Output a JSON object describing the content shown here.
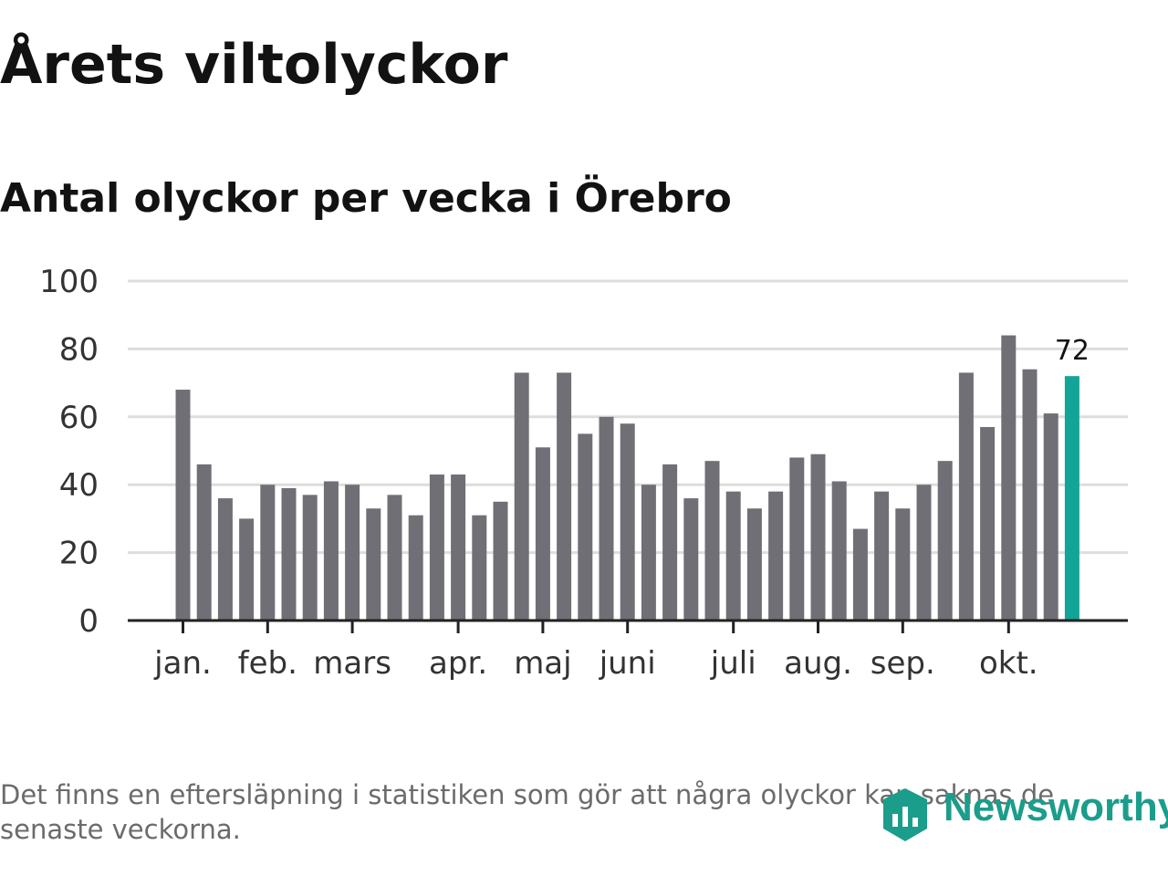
{
  "title": "Årets viltolyckor",
  "subtitle": "Antal olyckor per vecka i Örebro",
  "footnote": "Det finns en eftersläpning i statistiken som gör att några olyckor kan saknas de senaste veckorna.",
  "logo": {
    "text": "Newsworthy",
    "icon": "newsworthy-logo-icon"
  },
  "colors": {
    "bar": "#706f76",
    "highlight": "#12a597",
    "grid": "#dddddd",
    "axis": "#222222",
    "logo": "#1b9d8b"
  },
  "chart_data": {
    "type": "bar",
    "title": "Antal olyckor per vecka i Örebro",
    "xlabel": "",
    "ylabel": "",
    "ylim": [
      0,
      100
    ],
    "yticks": [
      0,
      20,
      40,
      60,
      80,
      100
    ],
    "grid": true,
    "month_labels": [
      "jan.",
      "feb.",
      "mars",
      "apr.",
      "maj",
      "juni",
      "juli",
      "aug.",
      "sep.",
      "okt."
    ],
    "month_tick_weeks": [
      1,
      5,
      9,
      14,
      18,
      22,
      27,
      31,
      35,
      40
    ],
    "weeks": [
      1,
      2,
      3,
      4,
      5,
      6,
      7,
      8,
      9,
      10,
      11,
      12,
      13,
      14,
      15,
      16,
      17,
      18,
      19,
      20,
      21,
      22,
      23,
      24,
      25,
      26,
      27,
      28,
      29,
      30,
      31,
      32,
      33,
      34,
      35,
      36,
      37,
      38,
      39,
      40,
      41,
      42,
      43
    ],
    "values": [
      68,
      46,
      36,
      30,
      40,
      39,
      37,
      41,
      40,
      33,
      37,
      31,
      43,
      43,
      31,
      35,
      73,
      51,
      73,
      55,
      60,
      58,
      40,
      46,
      36,
      47,
      38,
      33,
      38,
      48,
      49,
      41,
      27,
      38,
      33,
      40,
      47,
      73,
      57,
      84,
      74,
      61,
      72
    ],
    "highlight_index": 42,
    "highlight_label": "72"
  }
}
